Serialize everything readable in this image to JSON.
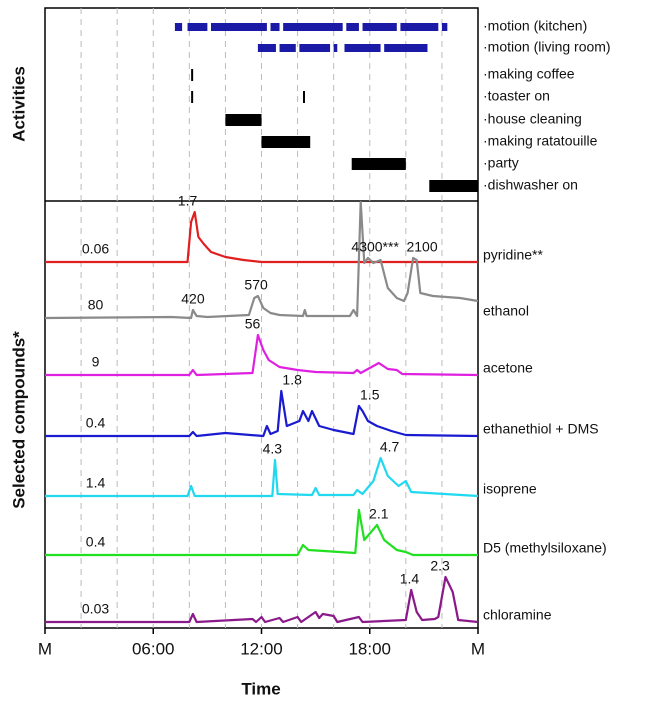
{
  "chart_data": {
    "type": "line",
    "xlabel": "Time",
    "xlim": [
      0,
      24
    ],
    "xticks": [
      {
        "value": 0,
        "label": "M"
      },
      {
        "value": 6,
        "label": "06:00"
      },
      {
        "value": 12,
        "label": "12:00"
      },
      {
        "value": 18,
        "label": "18:00"
      },
      {
        "value": 24,
        "label": "M"
      }
    ],
    "grid_x": [
      2,
      4,
      6,
      8,
      10,
      12,
      14,
      16,
      18,
      20,
      22
    ],
    "activities_label": "Activities",
    "activities": [
      {
        "name": "·motion (kitchen)",
        "color": "#1a1aa6",
        "intervals": [
          [
            7.2,
            7.6
          ],
          [
            7.9,
            9.0
          ],
          [
            9.2,
            12.3
          ],
          [
            12.5,
            13.0
          ],
          [
            13.2,
            16.5
          ],
          [
            16.7,
            17.4
          ],
          [
            17.6,
            19.5
          ],
          [
            19.7,
            21.8
          ],
          [
            22.0,
            22.3
          ]
        ]
      },
      {
        "name": "·motion (living room)",
        "color": "#1a1aa6",
        "intervals": [
          [
            11.8,
            12.8
          ],
          [
            13.0,
            13.9
          ],
          [
            14.1,
            15.8
          ],
          [
            16.0,
            16.2
          ],
          [
            16.6,
            18.6
          ],
          [
            18.8,
            21.2
          ]
        ]
      },
      {
        "name": "·making coffee",
        "color": "#000000",
        "intervals": [
          [
            8.1,
            8.2
          ]
        ]
      },
      {
        "name": "·toaster on",
        "color": "#000000",
        "intervals": [
          [
            8.1,
            8.2
          ],
          [
            14.3,
            14.4
          ]
        ]
      },
      {
        "name": "·house cleaning",
        "color": "#000000",
        "intervals": [
          [
            10.0,
            12.0
          ]
        ]
      },
      {
        "name": "·making ratatouille",
        "color": "#000000",
        "intervals": [
          [
            12.0,
            14.7
          ]
        ]
      },
      {
        "name": "·party",
        "color": "#000000",
        "intervals": [
          [
            17.0,
            20.0
          ]
        ]
      },
      {
        "name": "·dishwasher on",
        "color": "#000000",
        "intervals": [
          [
            21.3,
            24.0
          ]
        ]
      }
    ],
    "compounds_label": "Selected compounds*",
    "ylim": [
      0,
      60
    ],
    "series": [
      {
        "name": "pyridine**",
        "color": "#e02020",
        "baseline_label": "0.06",
        "x": [
          0,
          7.9,
          8.1,
          8.3,
          8.5,
          8.8,
          9.2,
          10,
          11,
          12,
          24
        ],
        "values": [
          0,
          0,
          40,
          50,
          25,
          18,
          10,
          5,
          2,
          0,
          0
        ],
        "peak_labels": [
          {
            "x": 7.9,
            "label": "1.7"
          }
        ]
      },
      {
        "name": "ethanol",
        "color": "#8a8a8a",
        "baseline_label": "80",
        "x": [
          0,
          7,
          8.1,
          8.2,
          8.4,
          9,
          11.3,
          11.6,
          11.8,
          12.1,
          12.5,
          13,
          14.3,
          14.4,
          14.5,
          16.9,
          17.1,
          17.3,
          17.5,
          17.7,
          17.9,
          18.2,
          18.6,
          19,
          19.5,
          19.9,
          20.1,
          20.4,
          20.6,
          20.8,
          21.5,
          23,
          24
        ],
        "values": [
          0,
          1,
          0,
          8,
          2,
          1,
          3,
          20,
          22,
          10,
          5,
          3,
          2,
          8,
          2,
          2,
          8,
          2,
          118,
          55,
          60,
          55,
          58,
          30,
          20,
          17,
          25,
          60,
          58,
          25,
          22,
          20,
          17
        ],
        "peak_labels": [
          {
            "x": 8.2,
            "label": "420"
          },
          {
            "x": 11.7,
            "label": "570"
          },
          {
            "x": 18.3,
            "label": "4300***"
          },
          {
            "x": 20.9,
            "label": "2100"
          }
        ]
      },
      {
        "name": "acetone",
        "color": "#e020e0",
        "baseline_label": "9",
        "x": [
          0,
          8.0,
          8.2,
          8.4,
          11.5,
          11.8,
          12.1,
          12.4,
          13,
          14,
          15,
          17.1,
          17.3,
          17.5,
          18.5,
          19,
          19.5,
          19.8,
          24
        ],
        "values": [
          0,
          0,
          5,
          0,
          2,
          40,
          25,
          15,
          8,
          5,
          3,
          2,
          5,
          2,
          12,
          6,
          5,
          1,
          0
        ],
        "peak_labels": [
          {
            "x": 11.5,
            "label": "56"
          }
        ]
      },
      {
        "name": "ethanethiol + DMS",
        "color": "#1a1ad0",
        "baseline_label": "0.4",
        "x": [
          0,
          8.0,
          8.2,
          8.4,
          10,
          12.1,
          12.3,
          12.5,
          12.9,
          13.1,
          13.4,
          14.1,
          14.3,
          14.6,
          14.8,
          15.2,
          16,
          17.1,
          17.4,
          17.6,
          17.9,
          18.4,
          19.2,
          20,
          24
        ],
        "values": [
          0,
          0,
          4,
          0,
          3,
          0,
          10,
          2,
          5,
          45,
          10,
          15,
          25,
          15,
          25,
          10,
          6,
          2,
          30,
          25,
          15,
          10,
          5,
          1,
          0
        ],
        "peak_labels": [
          {
            "x": 13.7,
            "label": "1.8"
          },
          {
            "x": 18.0,
            "label": "1.5"
          }
        ]
      },
      {
        "name": "isoprene",
        "color": "#20d8f0",
        "baseline_label": "1.4",
        "x": [
          0,
          7.9,
          8.1,
          8.3,
          12.6,
          12.75,
          12.9,
          14.8,
          15,
          15.2,
          17.1,
          17.3,
          17.6,
          18.2,
          18.6,
          19,
          19.6,
          20,
          20.3,
          24
        ],
        "values": [
          0,
          0,
          10,
          0,
          0,
          36,
          2,
          1,
          8,
          1,
          1,
          6,
          2,
          15,
          38,
          20,
          10,
          15,
          4,
          0
        ],
        "peak_labels": [
          {
            "x": 12.6,
            "label": "4.3"
          },
          {
            "x": 19.1,
            "label": "4.7"
          }
        ]
      },
      {
        "name": "D5 (methylsiloxane)",
        "color": "#20e020",
        "baseline_label": "0.4",
        "x": [
          0,
          14.0,
          14.3,
          14.6,
          17.2,
          17.4,
          17.7,
          18.4,
          18.8,
          19.5,
          20,
          20.4,
          24
        ],
        "values": [
          0,
          0,
          10,
          5,
          2,
          45,
          15,
          30,
          15,
          5,
          3,
          0,
          0
        ],
        "peak_labels": [
          {
            "x": 18.5,
            "label": "2.1"
          }
        ]
      },
      {
        "name": "chloramine",
        "color": "#8a1a8a",
        "baseline_label": "0.03",
        "x": [
          0,
          8.0,
          8.2,
          8.4,
          11.5,
          11.7,
          12,
          12.2,
          13,
          13.2,
          14,
          14.2,
          15,
          15.2,
          15.4,
          16,
          16.2,
          17.4,
          17.6,
          20.0,
          20.3,
          20.6,
          20.9,
          21.6,
          21.8,
          22.2,
          22.6,
          22.9,
          24
        ],
        "values": [
          0,
          0,
          8,
          0,
          3,
          0,
          5,
          0,
          4,
          0,
          5,
          0,
          10,
          4,
          8,
          6,
          0,
          5,
          0,
          2,
          32,
          10,
          2,
          3,
          5,
          45,
          30,
          2,
          0
        ],
        "peak_labels": [
          {
            "x": 20.2,
            "label": "1.4"
          },
          {
            "x": 21.9,
            "label": "2.3"
          }
        ]
      }
    ]
  }
}
